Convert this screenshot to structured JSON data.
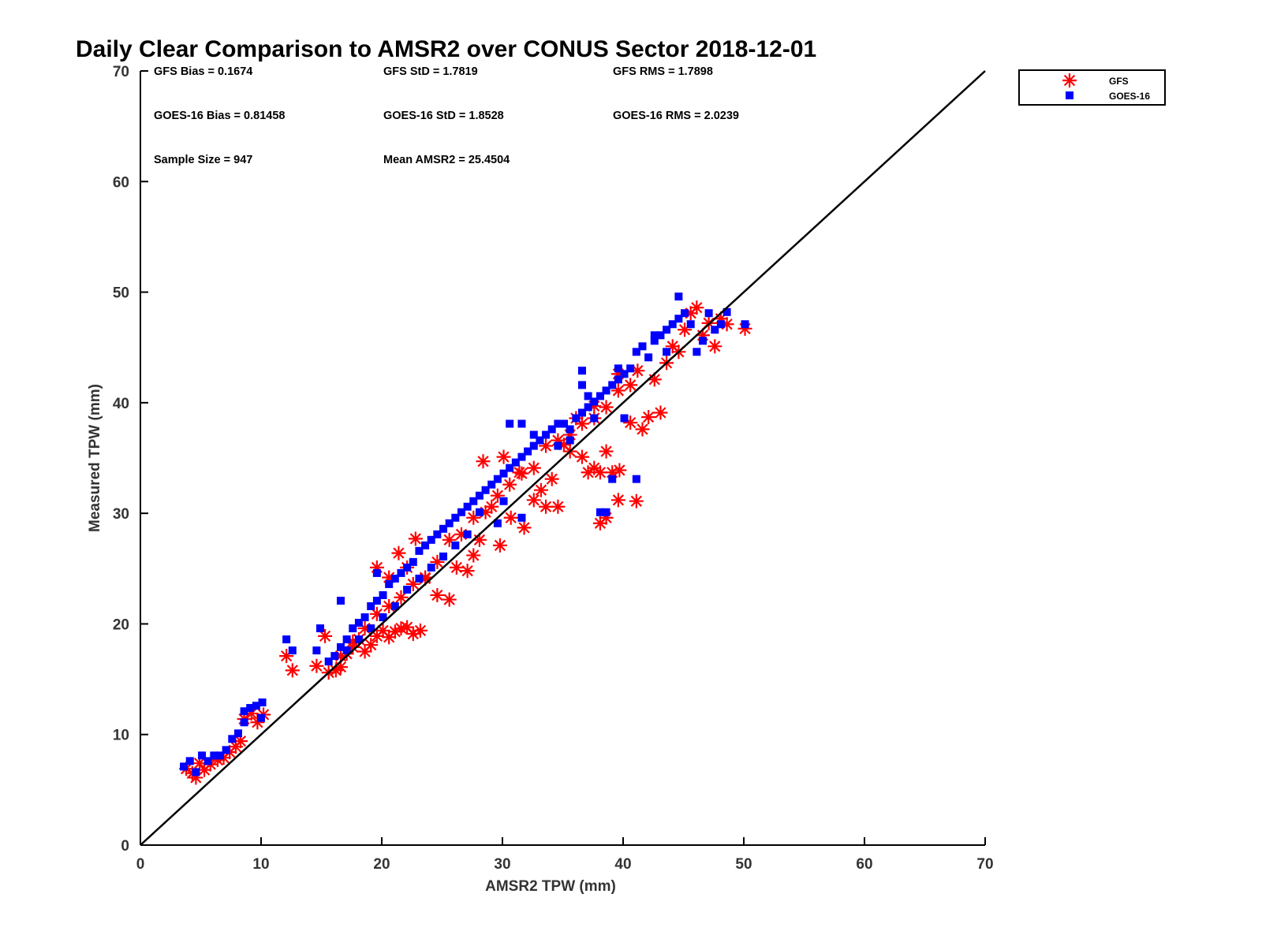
{
  "chart_data": {
    "type": "scatter",
    "title": "Daily Clear Comparison to AMSR2 over CONUS Sector 2018-12-01",
    "xlabel": "AMSR2 TPW (mm)",
    "ylabel": "Measured TPW (mm)",
    "xlim": [
      0,
      70
    ],
    "ylim": [
      0,
      70
    ],
    "xticks": [
      "0",
      "10",
      "20",
      "30",
      "40",
      "50",
      "60",
      "70"
    ],
    "yticks": [
      "0",
      "10",
      "20",
      "30",
      "40",
      "50",
      "60",
      "70"
    ],
    "grid": false,
    "legend_position": "outside-top-right",
    "reference_line": {
      "from": [
        0,
        0
      ],
      "to": [
        70,
        70
      ],
      "color": "#000000"
    },
    "stats": [
      [
        "GFS Bias = 0.1674",
        "GFS StD = 1.7819",
        "GFS RMS = 1.7898"
      ],
      [
        "GOES-16 Bias = 0.81458",
        "GOES-16 StD = 1.8528",
        "GOES-16 RMS = 2.0239"
      ],
      [
        "Sample Size = 947",
        "Mean AMSR2 = 25.4504",
        ""
      ]
    ],
    "series": [
      {
        "name": "GFS",
        "marker": "asterisk",
        "color": "#ff0000",
        "points": [
          [
            3.8,
            6.9
          ],
          [
            4.3,
            6.5
          ],
          [
            4.6,
            6.1
          ],
          [
            4.9,
            7.4
          ],
          [
            5.3,
            6.8
          ],
          [
            5.8,
            7.3
          ],
          [
            6.4,
            7.7
          ],
          [
            6.9,
            7.9
          ],
          [
            7.4,
            8.4
          ],
          [
            7.9,
            8.9
          ],
          [
            8.3,
            9.4
          ],
          [
            8.6,
            11.4
          ],
          [
            9.2,
            11.9
          ],
          [
            9.7,
            11.1
          ],
          [
            10.2,
            11.8
          ],
          [
            12.1,
            17.1
          ],
          [
            12.6,
            15.8
          ],
          [
            14.6,
            16.2
          ],
          [
            15.3,
            18.9
          ],
          [
            15.6,
            15.6
          ],
          [
            16.2,
            15.8
          ],
          [
            16.6,
            16.1
          ],
          [
            17.1,
            17.3
          ],
          [
            17.6,
            17.9
          ],
          [
            18.1,
            18.6
          ],
          [
            18.6,
            17.5
          ],
          [
            19.1,
            18.1
          ],
          [
            19.6,
            18.9
          ],
          [
            20.1,
            19.4
          ],
          [
            20.6,
            18.8
          ],
          [
            21.1,
            19.3
          ],
          [
            21.6,
            19.6
          ],
          [
            22.1,
            19.7
          ],
          [
            22.6,
            19.1
          ],
          [
            23.2,
            19.4
          ],
          [
            19.6,
            25.1
          ],
          [
            20.6,
            24.2
          ],
          [
            21.4,
            26.4
          ],
          [
            22.1,
            25.1
          ],
          [
            22.8,
            27.7
          ],
          [
            23.6,
            24.2
          ],
          [
            24.6,
            22.6
          ],
          [
            25.6,
            22.2
          ],
          [
            26.2,
            25.1
          ],
          [
            27.1,
            24.8
          ],
          [
            27.6,
            26.2
          ],
          [
            28.1,
            27.6
          ],
          [
            28.4,
            34.7
          ],
          [
            29.1,
            30.6
          ],
          [
            29.8,
            27.1
          ],
          [
            30.1,
            35.1
          ],
          [
            30.7,
            29.6
          ],
          [
            31.4,
            33.7
          ],
          [
            31.8,
            28.7
          ],
          [
            32.6,
            31.2
          ],
          [
            33.2,
            32.1
          ],
          [
            33.6,
            30.6
          ],
          [
            34.1,
            33.1
          ],
          [
            34.6,
            30.6
          ],
          [
            35.1,
            36.2
          ],
          [
            35.6,
            35.6
          ],
          [
            36.1,
            38.6
          ],
          [
            36.6,
            35.1
          ],
          [
            37.1,
            33.7
          ],
          [
            37.6,
            34.1
          ],
          [
            38.1,
            33.7
          ],
          [
            38.6,
            35.6
          ],
          [
            37.6,
            39.7
          ],
          [
            38.1,
            29.1
          ],
          [
            38.6,
            29.6
          ],
          [
            39.1,
            33.7
          ],
          [
            39.7,
            33.9
          ],
          [
            39.6,
            42.6
          ],
          [
            39.6,
            31.2
          ],
          [
            41.1,
            31.1
          ],
          [
            40.6,
            38.2
          ],
          [
            41.2,
            42.9
          ],
          [
            41.6,
            37.6
          ],
          [
            42.1,
            38.7
          ],
          [
            42.6,
            42.1
          ],
          [
            43.1,
            39.1
          ],
          [
            43.6,
            43.6
          ],
          [
            44.1,
            45.1
          ],
          [
            44.6,
            44.6
          ],
          [
            45.1,
            46.6
          ],
          [
            45.6,
            48.1
          ],
          [
            46.1,
            48.6
          ],
          [
            46.6,
            46.1
          ],
          [
            47.1,
            47.2
          ],
          [
            47.6,
            45.1
          ],
          [
            48.1,
            47.6
          ],
          [
            48.6,
            47.1
          ],
          [
            50.1,
            46.7
          ],
          [
            16.6,
            17.1
          ],
          [
            17.6,
            18.4
          ],
          [
            18.6,
            19.6
          ],
          [
            19.6,
            20.9
          ],
          [
            20.6,
            21.6
          ],
          [
            21.6,
            22.4
          ],
          [
            22.6,
            23.6
          ],
          [
            23.6,
            24.1
          ],
          [
            24.6,
            25.6
          ],
          [
            25.6,
            27.6
          ],
          [
            26.6,
            28.1
          ],
          [
            27.6,
            29.6
          ],
          [
            28.6,
            30.1
          ],
          [
            29.6,
            31.6
          ],
          [
            30.6,
            32.6
          ],
          [
            31.6,
            33.6
          ],
          [
            32.6,
            34.1
          ],
          [
            33.6,
            36.1
          ],
          [
            34.6,
            36.6
          ],
          [
            35.6,
            37.1
          ],
          [
            36.6,
            38.1
          ],
          [
            37.6,
            38.6
          ],
          [
            38.6,
            39.6
          ],
          [
            39.6,
            41.1
          ],
          [
            40.6,
            41.6
          ]
        ]
      },
      {
        "name": "GOES-16",
        "marker": "square",
        "color": "#0000ff",
        "points": [
          [
            3.6,
            7.1
          ],
          [
            4.1,
            7.6
          ],
          [
            4.6,
            6.6
          ],
          [
            5.1,
            8.1
          ],
          [
            5.6,
            7.6
          ],
          [
            6.1,
            8.1
          ],
          [
            6.6,
            8.1
          ],
          [
            7.1,
            8.6
          ],
          [
            7.6,
            9.6
          ],
          [
            8.1,
            10.1
          ],
          [
            8.6,
            11.1
          ],
          [
            8.6,
            12.1
          ],
          [
            9.1,
            12.4
          ],
          [
            9.6,
            12.6
          ],
          [
            10.1,
            12.9
          ],
          [
            10.0,
            11.5
          ],
          [
            12.1,
            18.6
          ],
          [
            12.6,
            17.6
          ],
          [
            14.6,
            17.6
          ],
          [
            14.9,
            19.6
          ],
          [
            15.6,
            16.6
          ],
          [
            16.1,
            17.1
          ],
          [
            16.6,
            17.9
          ],
          [
            16.6,
            22.1
          ],
          [
            17.1,
            18.6
          ],
          [
            17.6,
            19.6
          ],
          [
            18.1,
            20.1
          ],
          [
            18.6,
            20.6
          ],
          [
            19.1,
            21.6
          ],
          [
            19.6,
            22.1
          ],
          [
            19.6,
            24.6
          ],
          [
            20.1,
            22.6
          ],
          [
            20.6,
            23.6
          ],
          [
            21.1,
            24.1
          ],
          [
            21.6,
            24.6
          ],
          [
            22.1,
            25.1
          ],
          [
            22.6,
            25.6
          ],
          [
            23.1,
            26.6
          ],
          [
            23.6,
            27.1
          ],
          [
            24.1,
            27.6
          ],
          [
            24.6,
            28.1
          ],
          [
            25.1,
            28.6
          ],
          [
            25.6,
            29.1
          ],
          [
            26.1,
            29.6
          ],
          [
            26.6,
            30.1
          ],
          [
            27.1,
            30.6
          ],
          [
            27.6,
            31.1
          ],
          [
            28.1,
            31.6
          ],
          [
            28.6,
            32.1
          ],
          [
            29.1,
            32.6
          ],
          [
            29.6,
            33.1
          ],
          [
            30.1,
            33.6
          ],
          [
            30.6,
            34.1
          ],
          [
            31.1,
            34.6
          ],
          [
            31.6,
            35.1
          ],
          [
            32.1,
            35.6
          ],
          [
            32.6,
            36.1
          ],
          [
            33.1,
            36.6
          ],
          [
            33.6,
            37.1
          ],
          [
            34.1,
            37.6
          ],
          [
            34.6,
            36.1
          ],
          [
            35.1,
            38.1
          ],
          [
            35.6,
            37.6
          ],
          [
            36.1,
            38.6
          ],
          [
            36.6,
            39.1
          ],
          [
            37.1,
            39.6
          ],
          [
            37.6,
            40.1
          ],
          [
            38.1,
            40.6
          ],
          [
            38.6,
            41.1
          ],
          [
            39.1,
            41.6
          ],
          [
            39.6,
            42.1
          ],
          [
            40.1,
            42.6
          ],
          [
            40.6,
            43.1
          ],
          [
            41.1,
            44.6
          ],
          [
            41.6,
            45.1
          ],
          [
            42.1,
            44.1
          ],
          [
            42.6,
            45.6
          ],
          [
            43.1,
            46.1
          ],
          [
            43.6,
            46.6
          ],
          [
            44.1,
            47.1
          ],
          [
            44.6,
            47.6
          ],
          [
            44.6,
            49.6
          ],
          [
            45.1,
            48.1
          ],
          [
            45.6,
            47.1
          ],
          [
            46.1,
            44.6
          ],
          [
            46.6,
            45.6
          ],
          [
            47.1,
            48.1
          ],
          [
            47.6,
            46.6
          ],
          [
            48.1,
            47.1
          ],
          [
            48.6,
            48.2
          ],
          [
            50.1,
            47.1
          ],
          [
            30.6,
            38.1
          ],
          [
            31.6,
            38.1
          ],
          [
            32.6,
            37.1
          ],
          [
            34.6,
            38.1
          ],
          [
            35.6,
            36.6
          ],
          [
            36.6,
            41.6
          ],
          [
            36.6,
            42.9
          ],
          [
            37.1,
            40.6
          ],
          [
            37.6,
            38.6
          ],
          [
            38.1,
            30.1
          ],
          [
            38.6,
            30.1
          ],
          [
            39.1,
            33.1
          ],
          [
            39.6,
            43.1
          ],
          [
            40.1,
            38.6
          ],
          [
            41.1,
            33.1
          ],
          [
            42.6,
            46.1
          ],
          [
            43.6,
            44.6
          ],
          [
            31.6,
            29.6
          ],
          [
            29.6,
            29.1
          ],
          [
            30.1,
            31.1
          ],
          [
            28.1,
            30.1
          ],
          [
            27.1,
            28.1
          ],
          [
            26.1,
            27.1
          ],
          [
            25.1,
            26.1
          ],
          [
            24.1,
            25.1
          ],
          [
            23.1,
            24.1
          ],
          [
            22.1,
            23.1
          ],
          [
            21.1,
            21.6
          ],
          [
            20.1,
            20.6
          ],
          [
            19.1,
            19.6
          ],
          [
            18.1,
            18.6
          ],
          [
            17.1,
            17.6
          ]
        ]
      }
    ]
  }
}
